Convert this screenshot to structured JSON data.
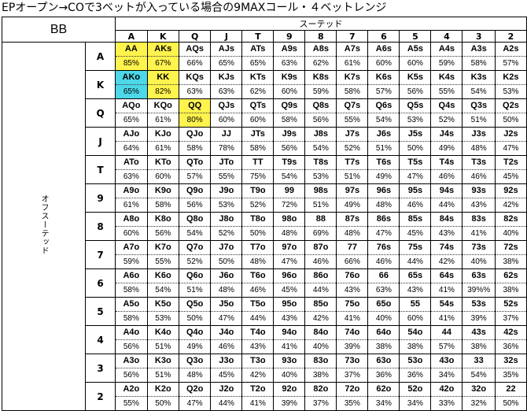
{
  "title": "EPオープン→COで3ベットが入っている場合の9MAXコール・４ベットレンジ",
  "corner_label": "BB",
  "suited_label": "スーテッド",
  "offsuit_label": "オフスーテッド",
  "columns": [
    "A",
    "K",
    "Q",
    "J",
    "T",
    "9",
    "8",
    "7",
    "6",
    "5",
    "4",
    "3",
    "2"
  ],
  "row_labels": [
    "A",
    "K",
    "Q",
    "J",
    "T",
    "9",
    "8",
    "7",
    "6",
    "5",
    "4",
    "3",
    "2"
  ],
  "highlight_colors": {
    "yellow": "#fff34d",
    "cyan": "#4dd7e8"
  },
  "highlights": {
    "0-0": "yellow",
    "0-1": "yellow",
    "1-0": "cyan",
    "1-1": "yellow",
    "2-2": "yellow"
  },
  "rows": [
    [
      {
        "h": "AA",
        "p": "85%"
      },
      {
        "h": "AKs",
        "p": "67%"
      },
      {
        "h": "AQs",
        "p": "66%"
      },
      {
        "h": "AJs",
        "p": "65%"
      },
      {
        "h": "ATs",
        "p": "65%"
      },
      {
        "h": "A9s",
        "p": "63%"
      },
      {
        "h": "A8s",
        "p": "62%"
      },
      {
        "h": "A7s",
        "p": "61%"
      },
      {
        "h": "A6s",
        "p": "60%"
      },
      {
        "h": "A5s",
        "p": "60%"
      },
      {
        "h": "A4s",
        "p": "59%"
      },
      {
        "h": "A3s",
        "p": "58%"
      },
      {
        "h": "A2s",
        "p": "57%"
      }
    ],
    [
      {
        "h": "AKo",
        "p": "65%"
      },
      {
        "h": "KK",
        "p": "82%"
      },
      {
        "h": "KQs",
        "p": "63%"
      },
      {
        "h": "KJs",
        "p": "63%"
      },
      {
        "h": "KTs",
        "p": "62%"
      },
      {
        "h": "K9s",
        "p": "60%"
      },
      {
        "h": "K8s",
        "p": "59%"
      },
      {
        "h": "K7s",
        "p": "58%"
      },
      {
        "h": "K6s",
        "p": "57%"
      },
      {
        "h": "K5s",
        "p": "56%"
      },
      {
        "h": "K4s",
        "p": "55%"
      },
      {
        "h": "K3s",
        "p": "54%"
      },
      {
        "h": "K2s",
        "p": "53%"
      }
    ],
    [
      {
        "h": "AQo",
        "p": "65%"
      },
      {
        "h": "KQo",
        "p": "61%"
      },
      {
        "h": "QQ",
        "p": "80%"
      },
      {
        "h": "QJs",
        "p": "60%"
      },
      {
        "h": "QTs",
        "p": "60%"
      },
      {
        "h": "Q9s",
        "p": "58%"
      },
      {
        "h": "Q8s",
        "p": "56%"
      },
      {
        "h": "Q7s",
        "p": "55%"
      },
      {
        "h": "Q6s",
        "p": "54%"
      },
      {
        "h": "Q5s",
        "p": "53%"
      },
      {
        "h": "Q4s",
        "p": "52%"
      },
      {
        "h": "Q3s",
        "p": "51%"
      },
      {
        "h": "Q2s",
        "p": "50%"
      }
    ],
    [
      {
        "h": "AJo",
        "p": "64%"
      },
      {
        "h": "KJo",
        "p": "61%"
      },
      {
        "h": "QJo",
        "p": "58%"
      },
      {
        "h": "JJ",
        "p": "78%"
      },
      {
        "h": "JTs",
        "p": "58%"
      },
      {
        "h": "J9s",
        "p": "56%"
      },
      {
        "h": "J8s",
        "p": "54%"
      },
      {
        "h": "J7s",
        "p": "52%"
      },
      {
        "h": "J6s",
        "p": "51%"
      },
      {
        "h": "J5s",
        "p": "50%"
      },
      {
        "h": "J4s",
        "p": "49%"
      },
      {
        "h": "J3s",
        "p": "48%"
      },
      {
        "h": "J2s",
        "p": "47%"
      }
    ],
    [
      {
        "h": "ATo",
        "p": "63%"
      },
      {
        "h": "KTo",
        "p": "60%"
      },
      {
        "h": "QTo",
        "p": "57%"
      },
      {
        "h": "JTo",
        "p": "55%"
      },
      {
        "h": "TT",
        "p": "75%"
      },
      {
        "h": "T9s",
        "p": "54%"
      },
      {
        "h": "T8s",
        "p": "53%"
      },
      {
        "h": "T7s",
        "p": "51%"
      },
      {
        "h": "T6s",
        "p": "49%"
      },
      {
        "h": "T5s",
        "p": "47%"
      },
      {
        "h": "T4s",
        "p": "46%"
      },
      {
        "h": "T3s",
        "p": "46%"
      },
      {
        "h": "T2s",
        "p": "45%"
      }
    ],
    [
      {
        "h": "A9o",
        "p": "61%"
      },
      {
        "h": "K9o",
        "p": "58%"
      },
      {
        "h": "Q9o",
        "p": "56%"
      },
      {
        "h": "J9o",
        "p": "53%"
      },
      {
        "h": "T9o",
        "p": "52%"
      },
      {
        "h": "99",
        "p": "72%"
      },
      {
        "h": "98s",
        "p": "51%"
      },
      {
        "h": "97s",
        "p": "49%"
      },
      {
        "h": "96s",
        "p": "48%"
      },
      {
        "h": "95s",
        "p": "46%"
      },
      {
        "h": "94s",
        "p": "44%"
      },
      {
        "h": "93s",
        "p": "43%"
      },
      {
        "h": "92s",
        "p": "42%"
      }
    ],
    [
      {
        "h": "A8o",
        "p": "60%"
      },
      {
        "h": "K8o",
        "p": "56%"
      },
      {
        "h": "Q8o",
        "p": "54%"
      },
      {
        "h": "J8o",
        "p": "52%"
      },
      {
        "h": "T8o",
        "p": "50%"
      },
      {
        "h": "98o",
        "p": "48%"
      },
      {
        "h": "88",
        "p": "69%"
      },
      {
        "h": "87s",
        "p": "48%"
      },
      {
        "h": "86s",
        "p": "47%"
      },
      {
        "h": "85s",
        "p": "45%"
      },
      {
        "h": "84s",
        "p": "43%"
      },
      {
        "h": "83s",
        "p": "41%"
      },
      {
        "h": "82s",
        "p": "40%"
      }
    ],
    [
      {
        "h": "A7o",
        "p": "59%"
      },
      {
        "h": "K7o",
        "p": "55%"
      },
      {
        "h": "Q7o",
        "p": "52%"
      },
      {
        "h": "J7o",
        "p": "50%"
      },
      {
        "h": "T7o",
        "p": "48%"
      },
      {
        "h": "97o",
        "p": "47%"
      },
      {
        "h": "87o",
        "p": "46%"
      },
      {
        "h": "77",
        "p": "66%"
      },
      {
        "h": "76s",
        "p": "46%"
      },
      {
        "h": "75s",
        "p": "44%"
      },
      {
        "h": "74s",
        "p": "42%"
      },
      {
        "h": "73s",
        "p": "40%"
      },
      {
        "h": "72s",
        "p": "38%"
      }
    ],
    [
      {
        "h": "A6o",
        "p": "58%"
      },
      {
        "h": "K6o",
        "p": "54%"
      },
      {
        "h": "Q6o",
        "p": "51%"
      },
      {
        "h": "J6o",
        "p": "48%"
      },
      {
        "h": "T6o",
        "p": "46%"
      },
      {
        "h": "96o",
        "p": "45%"
      },
      {
        "h": "86o",
        "p": "44%"
      },
      {
        "h": "76o",
        "p": "43%"
      },
      {
        "h": "66",
        "p": "63%"
      },
      {
        "h": "65s",
        "p": "43%"
      },
      {
        "h": "64s",
        "p": "41%"
      },
      {
        "h": "63s",
        "p": "39%%"
      },
      {
        "h": "62s",
        "p": "38%"
      }
    ],
    [
      {
        "h": "A5o",
        "p": "58%"
      },
      {
        "h": "K5o",
        "p": "53%"
      },
      {
        "h": "Q5o",
        "p": "50%"
      },
      {
        "h": "J5o",
        "p": "47%"
      },
      {
        "h": "T5o",
        "p": "44%"
      },
      {
        "h": "95o",
        "p": "43%"
      },
      {
        "h": "85o",
        "p": "42%"
      },
      {
        "h": "75o",
        "p": "41%"
      },
      {
        "h": "65o",
        "p": "40%"
      },
      {
        "h": "55",
        "p": "60%"
      },
      {
        "h": "54s",
        "p": "41%"
      },
      {
        "h": "53s",
        "p": "39%"
      },
      {
        "h": "52s",
        "p": "37%"
      }
    ],
    [
      {
        "h": "A4o",
        "p": "56%"
      },
      {
        "h": "K4o",
        "p": "51%"
      },
      {
        "h": "Q4o",
        "p": "49%"
      },
      {
        "h": "J4o",
        "p": "46%"
      },
      {
        "h": "T4o",
        "p": "43%"
      },
      {
        "h": "94o",
        "p": "41%"
      },
      {
        "h": "84o",
        "p": "40%"
      },
      {
        "h": "74o",
        "p": "39%"
      },
      {
        "h": "64o",
        "p": "38%"
      },
      {
        "h": "54o",
        "p": "38%"
      },
      {
        "h": "44",
        "p": "57%"
      },
      {
        "h": "43s",
        "p": "38%"
      },
      {
        "h": "42s",
        "p": "36%"
      }
    ],
    [
      {
        "h": "A3o",
        "p": "56%"
      },
      {
        "h": "K3o",
        "p": "51%"
      },
      {
        "h": "Q3o",
        "p": "48%"
      },
      {
        "h": "J3o",
        "p": "45%"
      },
      {
        "h": "T3o",
        "p": "42%"
      },
      {
        "h": "93o",
        "p": "40%"
      },
      {
        "h": "83o",
        "p": "38%"
      },
      {
        "h": "73o",
        "p": "37%"
      },
      {
        "h": "63o",
        "p": "36%"
      },
      {
        "h": "53o",
        "p": "36%"
      },
      {
        "h": "43o",
        "p": "34%"
      },
      {
        "h": "33",
        "p": "54%"
      },
      {
        "h": "32s",
        "p": "35%"
      }
    ],
    [
      {
        "h": "A2o",
        "p": "55%"
      },
      {
        "h": "K2o",
        "p": "50%"
      },
      {
        "h": "Q2o",
        "p": "47%"
      },
      {
        "h": "J2o",
        "p": "44%"
      },
      {
        "h": "T2o",
        "p": "41%"
      },
      {
        "h": "92o",
        "p": "39%"
      },
      {
        "h": "82o",
        "p": "37%"
      },
      {
        "h": "72o",
        "p": "35%"
      },
      {
        "h": "62o",
        "p": "34%"
      },
      {
        "h": "52o",
        "p": "34%"
      },
      {
        "h": "42o",
        "p": "33%"
      },
      {
        "h": "32o",
        "p": "32%"
      },
      {
        "h": "22",
        "p": "50%"
      }
    ]
  ]
}
